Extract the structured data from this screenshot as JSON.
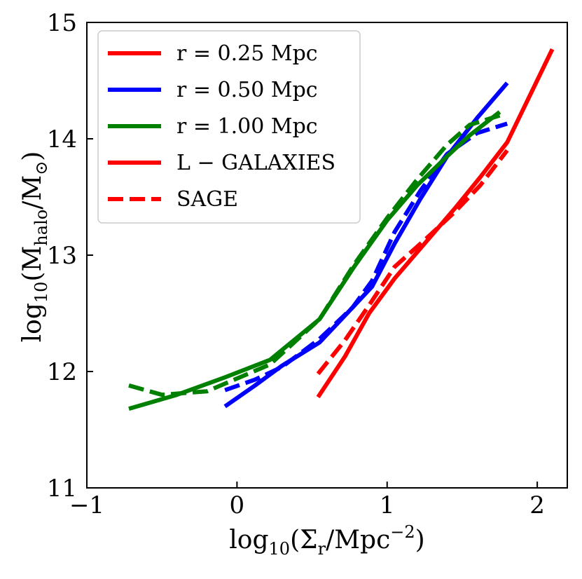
{
  "chart_data": {
    "type": "line",
    "title": "",
    "xlabel": {
      "prefix": "log",
      "prefix_sub": "10",
      "open": "(Σ",
      "sym_sub": "r",
      "rest": "/Mpc",
      "sup": "−2",
      "close": ")"
    },
    "ylabel": {
      "prefix": "log",
      "prefix_sub": "10",
      "open": "(M",
      "sym_sub": "halo",
      "rest": "/M",
      "rest_sub": "⊙",
      "close": ")"
    },
    "xlim": [
      -1,
      2.2
    ],
    "ylim": [
      11,
      15
    ],
    "xticks": [
      -1,
      0,
      1,
      2
    ],
    "xtick_labels": [
      "−1",
      "0",
      "1",
      "2"
    ],
    "yticks": [
      11,
      12,
      13,
      14,
      15
    ],
    "ytick_labels": [
      "11",
      "12",
      "13",
      "14",
      "15"
    ],
    "grid": false,
    "legend_position": "top-left",
    "legend": [
      {
        "label": "r = 0.25 Mpc",
        "color": "#ff0000",
        "style": "solid"
      },
      {
        "label": "r = 0.50 Mpc",
        "color": "#0000ff",
        "style": "solid"
      },
      {
        "label": "r = 1.00 Mpc",
        "color": "#008000",
        "style": "solid"
      },
      {
        "label": "L − GALAXIES",
        "color": "#ff0000",
        "style": "solid"
      },
      {
        "label": "SAGE",
        "color": "#ff0000",
        "style": "dashed"
      }
    ],
    "series": [
      {
        "radius": "r = 0.25 Mpc",
        "model": "L − GALAXIES",
        "color": "#ff0000",
        "style": "solid",
        "x": [
          0.54,
          0.72,
          0.88,
          1.05,
          1.25,
          1.45,
          1.62,
          1.8,
          2.1
        ],
        "y": [
          11.78,
          12.13,
          12.5,
          12.8,
          13.1,
          13.4,
          13.67,
          13.97,
          14.77
        ]
      },
      {
        "radius": "r = 0.25 Mpc",
        "model": "SAGE",
        "color": "#ff0000",
        "style": "dashed",
        "x": [
          0.54,
          0.72,
          0.88,
          1.05,
          1.25,
          1.45,
          1.62,
          1.8
        ],
        "y": [
          11.98,
          12.27,
          12.57,
          12.9,
          13.13,
          13.37,
          13.6,
          13.9
        ]
      },
      {
        "radius": "r = 0.50 Mpc",
        "model": "L − GALAXIES",
        "color": "#0000ff",
        "style": "solid",
        "x": [
          -0.08,
          0.12,
          0.3,
          0.55,
          0.77,
          0.9,
          1.05,
          1.22,
          1.4,
          1.6,
          1.8
        ],
        "y": [
          11.7,
          11.88,
          12.05,
          12.25,
          12.55,
          12.73,
          13.1,
          13.48,
          13.85,
          14.18,
          14.48
        ]
      },
      {
        "radius": "r = 0.50 Mpc",
        "model": "SAGE",
        "color": "#0000ff",
        "style": "dashed",
        "x": [
          -0.08,
          0.12,
          0.3,
          0.55,
          0.77,
          0.9,
          1.05,
          1.22,
          1.4,
          1.6,
          1.8
        ],
        "y": [
          11.84,
          11.93,
          12.04,
          12.28,
          12.55,
          12.78,
          13.2,
          13.55,
          13.87,
          14.05,
          14.13
        ]
      },
      {
        "radius": "r = 1.00 Mpc",
        "model": "L − GALAXIES",
        "color": "#008000",
        "style": "solid",
        "x": [
          -0.72,
          -0.4,
          -0.08,
          0.22,
          0.55,
          0.78,
          1.0,
          1.2,
          1.4,
          1.55,
          1.75
        ],
        "y": [
          11.68,
          11.8,
          11.95,
          12.1,
          12.45,
          12.9,
          13.3,
          13.6,
          13.85,
          14.03,
          14.23
        ]
      },
      {
        "radius": "r = 1.00 Mpc",
        "model": "SAGE",
        "color": "#008000",
        "style": "dashed",
        "x": [
          -0.72,
          -0.5,
          -0.2,
          0.22,
          0.55,
          0.78,
          1.0,
          1.2,
          1.4,
          1.55,
          1.75
        ],
        "y": [
          11.88,
          11.8,
          11.83,
          12.06,
          12.45,
          12.92,
          13.32,
          13.65,
          13.95,
          14.12,
          14.2
        ]
      }
    ]
  }
}
